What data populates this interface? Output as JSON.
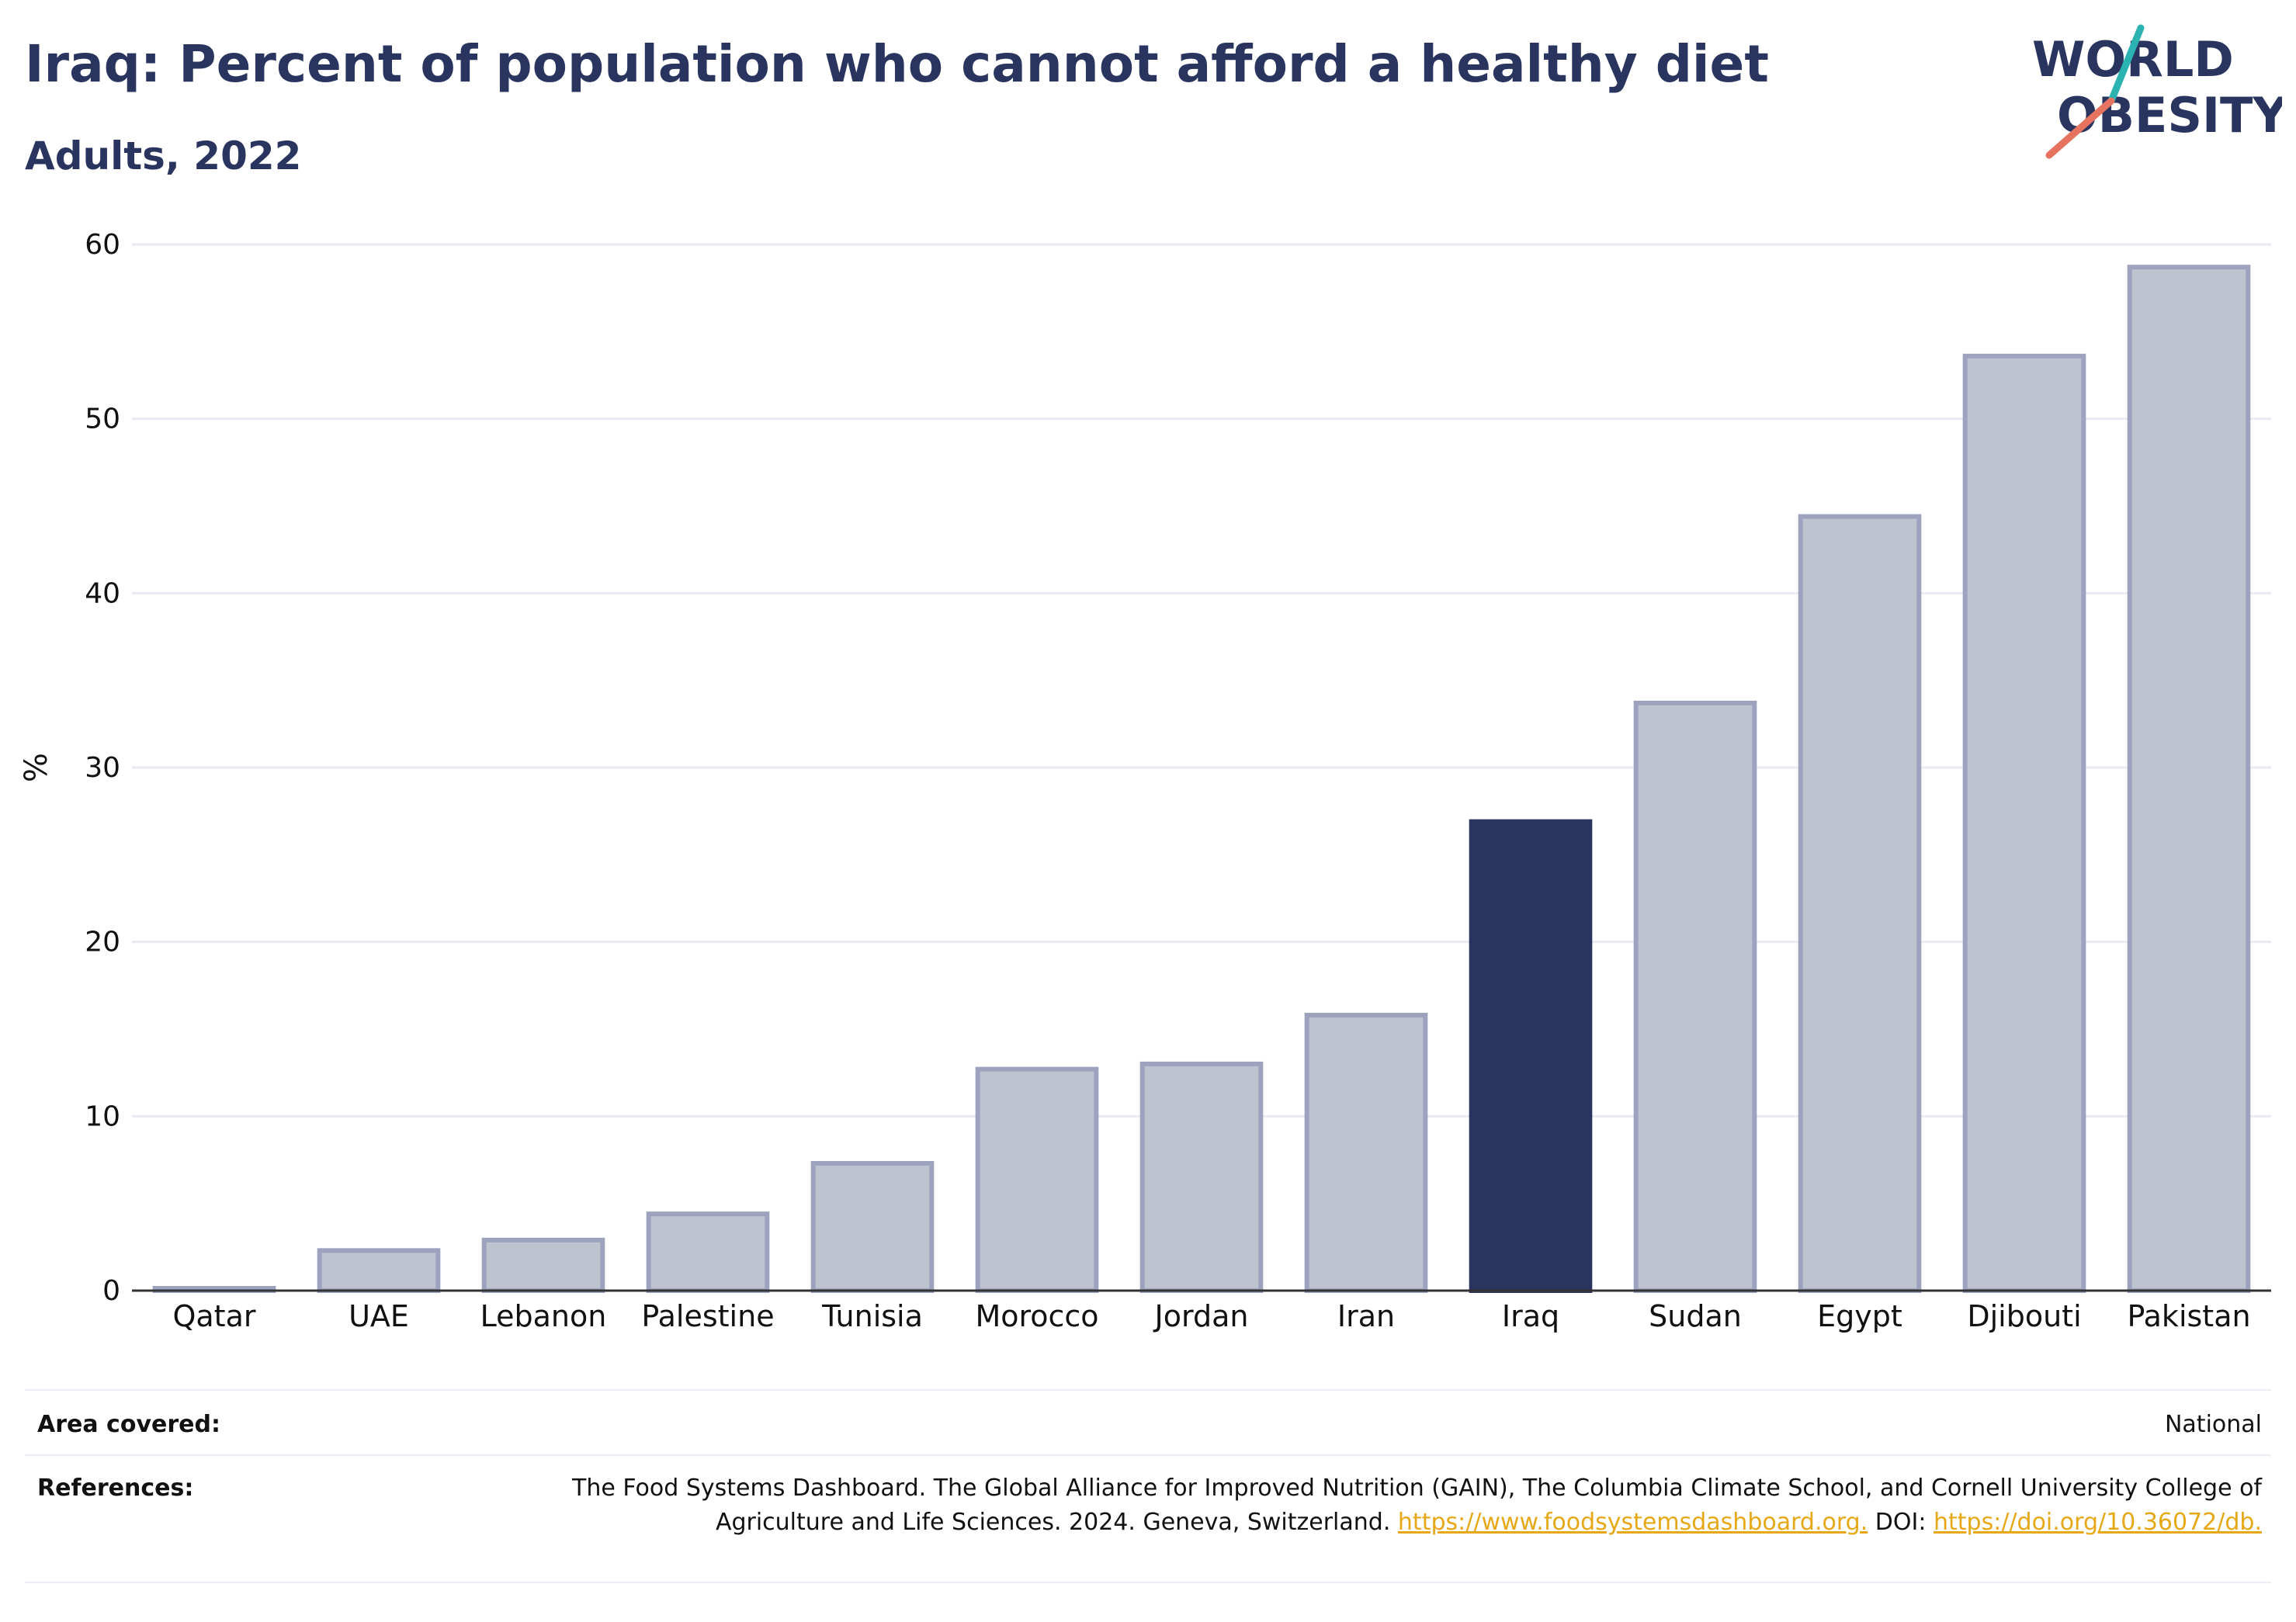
{
  "header": {
    "title": "Iraq: Percent of population who cannot afford a healthy diet",
    "subtitle": "Adults, 2022"
  },
  "logo": {
    "line1": "WORLD",
    "line2": "OBESITY"
  },
  "colors": {
    "highlight": "#2a355f",
    "bar_fill": "#bfc2cf",
    "bar_stroke": "#9da3bf",
    "accent_teal": "#2bb3b1",
    "accent_coral": "#e5735f",
    "link": "#e6a817"
  },
  "chart_data": {
    "type": "bar",
    "title": "Iraq: Percent of population who cannot afford a healthy diet",
    "subtitle": "Adults, 2022",
    "ylabel": "%",
    "xlabel": "",
    "ylim": [
      0,
      60
    ],
    "yticks": [
      0,
      10,
      20,
      30,
      40,
      50,
      60
    ],
    "grid": true,
    "highlight_category": "Iraq",
    "categories": [
      "Qatar",
      "UAE",
      "Lebanon",
      "Palestine",
      "Tunisia",
      "Morocco",
      "Jordan",
      "Iran",
      "Iraq",
      "Sudan",
      "Egypt",
      "Djibouti",
      "Pakistan"
    ],
    "values": [
      0.1,
      2.3,
      2.9,
      4.4,
      7.3,
      12.7,
      13.0,
      15.8,
      26.9,
      33.7,
      44.4,
      53.6,
      58.7
    ]
  },
  "footer": {
    "area_label": "Area covered:",
    "area_value": "National",
    "refs_label": "References:",
    "refs_text": "The Food Systems Dashboard. The Global Alliance for Improved Nutrition (GAIN), The Columbia Climate School, and Cornell University College of Agriculture and Life Sciences. 2024. Geneva, Switzerland.",
    "refs_link1": "https://www.foodsystemsdashboard.org.",
    "refs_doi_label": "DOI:",
    "refs_link2": "https://doi.org/10.36072/db."
  }
}
